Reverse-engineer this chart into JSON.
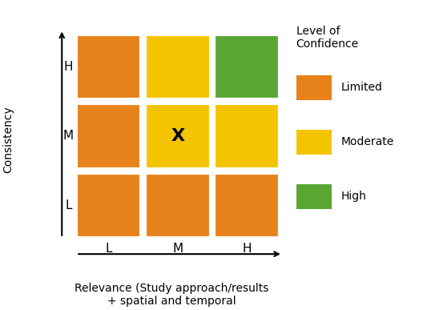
{
  "grid_colors": [
    [
      "#E8821A",
      "#E8821A",
      "#E8821A"
    ],
    [
      "#E8821A",
      "#F5C400",
      "#F5C400"
    ],
    [
      "#E8821A",
      "#F5C400",
      "#5AA632"
    ]
  ],
  "x_labels": [
    "L",
    "M",
    "H"
  ],
  "y_labels": [
    "L",
    "M",
    "H"
  ],
  "x_axis_label": "Relevance (Study approach/results\n+ spatial and temporal",
  "y_axis_label": "Consistency",
  "marker_cell": [
    1,
    1
  ],
  "marker_text": "X",
  "legend_title": "Level of\nConfidence",
  "legend_items": [
    {
      "label": "Limited",
      "color": "#E8821A"
    },
    {
      "label": "Moderate",
      "color": "#F5C400"
    },
    {
      "label": "High",
      "color": "#5AA632"
    }
  ],
  "bg_color": "#ffffff",
  "label_fontsize": 10,
  "tick_fontsize": 11,
  "marker_fontsize": 16,
  "legend_fontsize": 10,
  "legend_title_fontsize": 10
}
